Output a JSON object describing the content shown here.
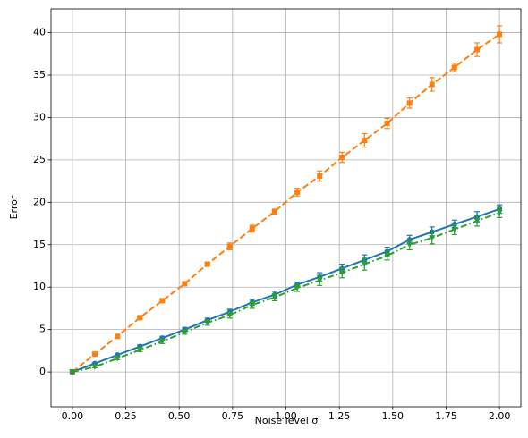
{
  "chart_data": {
    "type": "line",
    "xlabel": "Noise level σ",
    "ylabel": "Error",
    "x": [
      0,
      0.105,
      0.211,
      0.316,
      0.421,
      0.526,
      0.632,
      0.737,
      0.842,
      0.947,
      1.053,
      1.158,
      1.263,
      1.368,
      1.474,
      1.579,
      1.684,
      1.789,
      1.895,
      2.0
    ],
    "series": [
      {
        "color": "#ff7f0e",
        "linestyle": "dashed",
        "marker": "square",
        "values": [
          0,
          2.1,
          4.2,
          6.4,
          8.4,
          10.4,
          12.7,
          14.8,
          16.9,
          18.9,
          21.2,
          23.1,
          25.3,
          27.3,
          29.3,
          31.7,
          33.9,
          35.9,
          38.0,
          39.8
        ],
        "errors": [
          0,
          0.1,
          0.15,
          0.15,
          0.2,
          0.2,
          0.25,
          0.4,
          0.4,
          0.3,
          0.45,
          0.6,
          0.6,
          0.8,
          0.6,
          0.6,
          0.8,
          0.5,
          0.8,
          1.0
        ]
      },
      {
        "color": "#1f77b4",
        "linestyle": "solid",
        "marker": "circle",
        "values": [
          0,
          1.0,
          2.0,
          3.0,
          4.0,
          5.0,
          6.1,
          7.1,
          8.2,
          9.1,
          10.3,
          11.2,
          12.2,
          13.2,
          14.2,
          15.6,
          16.5,
          17.4,
          18.3,
          19.2
        ],
        "errors": [
          0,
          0.1,
          0.15,
          0.2,
          0.2,
          0.25,
          0.25,
          0.3,
          0.35,
          0.4,
          0.3,
          0.5,
          0.5,
          0.6,
          0.5,
          0.5,
          0.6,
          0.5,
          0.6,
          0.5
        ]
      },
      {
        "color": "#2ca02c",
        "linestyle": "dashdot",
        "marker": "triangle-down",
        "values": [
          0,
          0.6,
          1.6,
          2.6,
          3.6,
          4.7,
          5.8,
          6.7,
          7.9,
          8.8,
          9.9,
          10.8,
          11.7,
          12.7,
          13.7,
          15.0,
          15.8,
          16.8,
          17.8,
          18.8
        ],
        "errors": [
          0,
          0.1,
          0.15,
          0.2,
          0.25,
          0.25,
          0.3,
          0.35,
          0.4,
          0.4,
          0.4,
          0.6,
          0.6,
          0.7,
          0.5,
          0.6,
          0.7,
          0.6,
          0.6,
          0.6
        ]
      }
    ],
    "xlim": [
      -0.1,
      2.1
    ],
    "ylim": [
      -4.1,
      42.8
    ],
    "xticks": [
      {
        "value": 0,
        "label": "0.00"
      },
      {
        "value": 0.25,
        "label": "0.25"
      },
      {
        "value": 0.5,
        "label": "0.50"
      },
      {
        "value": 0.75,
        "label": "0.75"
      },
      {
        "value": 1,
        "label": "1.00"
      },
      {
        "value": 1.25,
        "label": "1.25"
      },
      {
        "value": 1.5,
        "label": "1.50"
      },
      {
        "value": 1.75,
        "label": "1.75"
      },
      {
        "value": 2,
        "label": "2.00"
      }
    ],
    "yticks": [
      0,
      5,
      10,
      15,
      20,
      25,
      30,
      35,
      40
    ],
    "grid": true
  }
}
